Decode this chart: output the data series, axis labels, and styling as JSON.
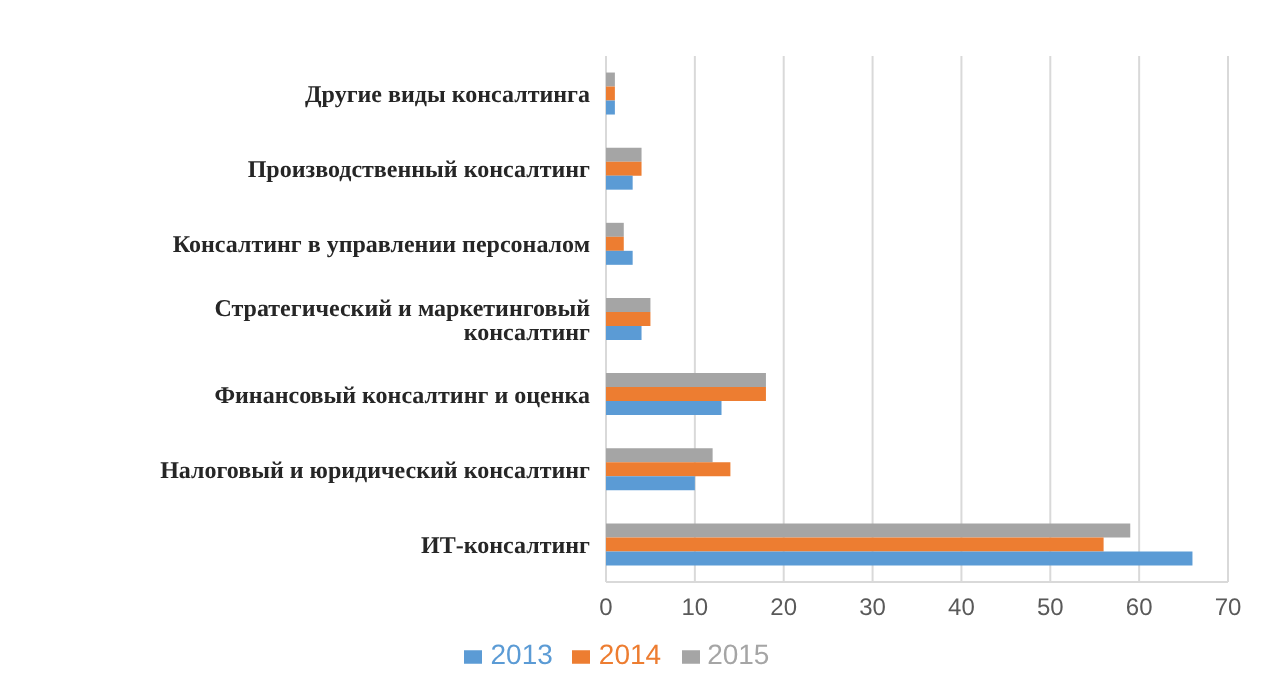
{
  "chart_data": {
    "type": "bar",
    "orientation": "horizontal",
    "categories": [
      "Другие виды консалтинга",
      "Производственный консалтинг",
      "Консалтинг в управлении персоналом",
      "Стратегический и маркетинговый консалтинг",
      "Финансовый консалтинг и оценка",
      "Налоговый и юридический консалтинг",
      "ИТ-консалтинг"
    ],
    "series": [
      {
        "name": "2015",
        "color": "#a5a5a5",
        "values": [
          1,
          4,
          2,
          5,
          18,
          12,
          59
        ]
      },
      {
        "name": "2014",
        "color": "#ed7d31",
        "values": [
          1,
          4,
          2,
          5,
          18,
          14,
          56
        ]
      },
      {
        "name": "2013",
        "color": "#5b9bd5",
        "values": [
          1,
          3,
          3,
          4,
          13,
          10,
          66
        ]
      }
    ],
    "xlim": [
      0,
      70
    ],
    "xticks": [
      0,
      10,
      20,
      30,
      40,
      50,
      60,
      70
    ],
    "grid": "x",
    "legend": "bottom"
  }
}
